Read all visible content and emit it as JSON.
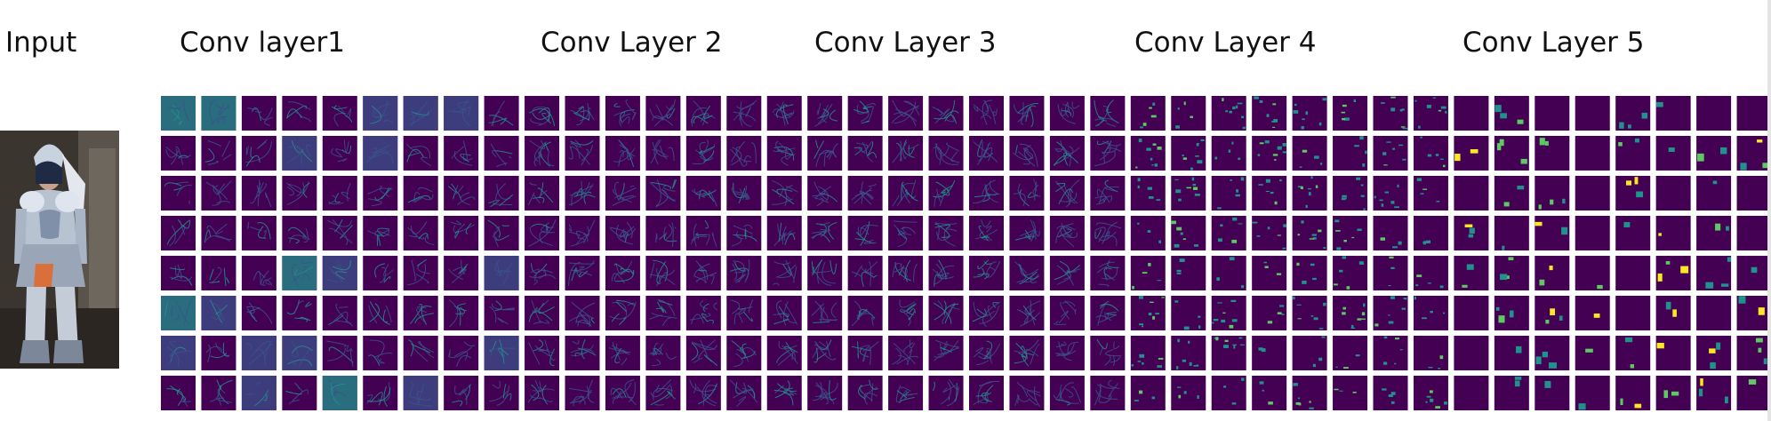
{
  "titles": {
    "input": "Input",
    "layer1": "Conv layer1",
    "layer2": "Conv Layer 2",
    "layer3": "Conv Layer 3",
    "layer4": "Conv Layer 4",
    "layer5": "Conv Layer 5"
  },
  "grid": {
    "rows": 8,
    "groups": [
      {
        "name": "conv-layer-1",
        "columns": 9,
        "style": "edge-bright"
      },
      {
        "name": "conv-layer-2",
        "columns": 8,
        "style": "texture"
      },
      {
        "name": "conv-layer-3",
        "columns": 7,
        "style": "texture"
      },
      {
        "name": "conv-layer-4",
        "columns": 8,
        "style": "speckle"
      },
      {
        "name": "conv-layer-5",
        "columns": 8,
        "style": "sparse"
      }
    ]
  },
  "colors": {
    "background": "#440154",
    "dim": "#3b528b",
    "mid": "#21918c",
    "bright": "#5ec962",
    "peak": "#fde725"
  }
}
